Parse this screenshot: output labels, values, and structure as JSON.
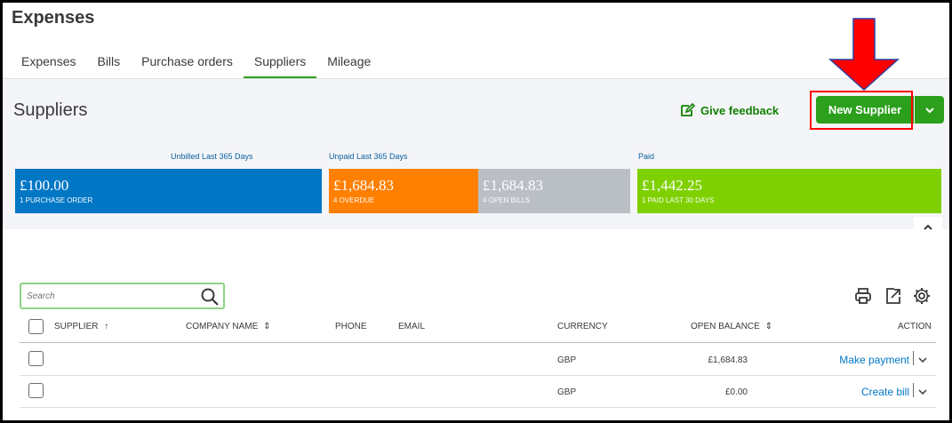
{
  "app": {
    "title": "Expenses"
  },
  "tabs": [
    {
      "label": "Expenses",
      "active": false
    },
    {
      "label": "Bills",
      "active": false
    },
    {
      "label": "Purchase orders",
      "active": false
    },
    {
      "label": "Suppliers",
      "active": true
    },
    {
      "label": "Mileage",
      "active": false
    }
  ],
  "page": {
    "title": "Suppliers"
  },
  "actions": {
    "feedback_label": "Give feedback",
    "new_supplier_label": "New Supplier"
  },
  "stats": {
    "labels": {
      "unbilled": "Unbilled Last 365 Days",
      "unpaid": "Unpaid Last 365 Days",
      "paid": "Paid"
    },
    "purchase_order": {
      "amount": "£100.00",
      "sub": "1 PURCHASE ORDER",
      "color": "#0077c5"
    },
    "overdue": {
      "amount": "£1,684.83",
      "sub": "4 OVERDUE",
      "color": "#ff8000"
    },
    "open_bills": {
      "amount": "£1,684.83",
      "sub": "4 OPEN BILLS",
      "color": "#babec5"
    },
    "paid": {
      "amount": "£1,442.25",
      "sub": "1 PAID LAST 30 DAYS",
      "color": "#7fd000"
    }
  },
  "search": {
    "placeholder": "Search",
    "value": ""
  },
  "table": {
    "columns": {
      "supplier": "SUPPLIER",
      "company_name": "COMPANY NAME",
      "phone": "PHONE",
      "email": "EMAIL",
      "currency": "CURRENCY",
      "open_balance": "OPEN BALANCE",
      "action": "ACTION"
    },
    "rows": [
      {
        "supplier": "",
        "company_name": "",
        "phone": "",
        "email": "",
        "currency": "GBP",
        "open_balance": "£1,684.83",
        "action": "Make payment"
      },
      {
        "supplier": "",
        "company_name": "",
        "phone": "",
        "email": "",
        "currency": "GBP",
        "open_balance": "£0.00",
        "action": "Create bill"
      }
    ]
  },
  "icons": {
    "feedback": "edit-feedback-icon",
    "dropdown": "chevron-down-icon",
    "collapse": "chevron-up-icon",
    "search": "search-icon",
    "print": "print-icon",
    "export": "export-icon",
    "settings": "gear-icon",
    "sort_asc": "arrow-up-icon",
    "sort": "sort-icon",
    "annotation_arrow": "red-down-arrow-icon"
  },
  "colors": {
    "accent_green": "#2ca01c",
    "link_blue": "#0077c5",
    "annotation_red": "#ff0000"
  }
}
